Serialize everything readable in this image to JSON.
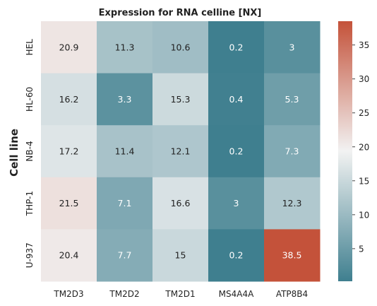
{
  "chart_data": {
    "type": "heatmap",
    "title": "Expression for RNA celline [NX]",
    "xlabel": "",
    "ylabel": "Cell line",
    "columns": [
      "TM2D3",
      "TM2D2",
      "TM2D1",
      "MS4A4A",
      "ATP8B4"
    ],
    "rows": [
      "HEL",
      "HL-60",
      "NB-4",
      "THP-1",
      "U-937"
    ],
    "values": [
      [
        20.9,
        11.3,
        10.6,
        0.2,
        3
      ],
      [
        16.2,
        3.3,
        15.3,
        0.4,
        5.3
      ],
      [
        17.2,
        11.4,
        12.1,
        0.2,
        7.3
      ],
      [
        21.5,
        7.1,
        16.6,
        3,
        12.3
      ],
      [
        20.4,
        7.7,
        15,
        0.2,
        38.5
      ]
    ],
    "value_labels": [
      [
        "20.9",
        "11.3",
        "10.6",
        "0.2",
        "3"
      ],
      [
        "16.2",
        "3.3",
        "15.3",
        "0.4",
        "5.3"
      ],
      [
        "17.2",
        "11.4",
        "12.1",
        "0.2",
        "7.3"
      ],
      [
        "21.5",
        "7.1",
        "16.6",
        "3",
        "12.3"
      ],
      [
        "20.4",
        "7.7",
        "15",
        "0.2",
        "38.5"
      ]
    ],
    "colorbar": {
      "range": [
        0.2,
        38.5
      ],
      "center": 19.35,
      "ticks": [
        5,
        10,
        15,
        20,
        25,
        30,
        35
      ],
      "tick_labels": [
        "5",
        "10",
        "15",
        "20",
        "25",
        "30",
        "35"
      ],
      "colors": {
        "low": "#3f7f8f",
        "mid": "#f2f2f2",
        "high": "#c4523a"
      }
    },
    "grid": false
  }
}
